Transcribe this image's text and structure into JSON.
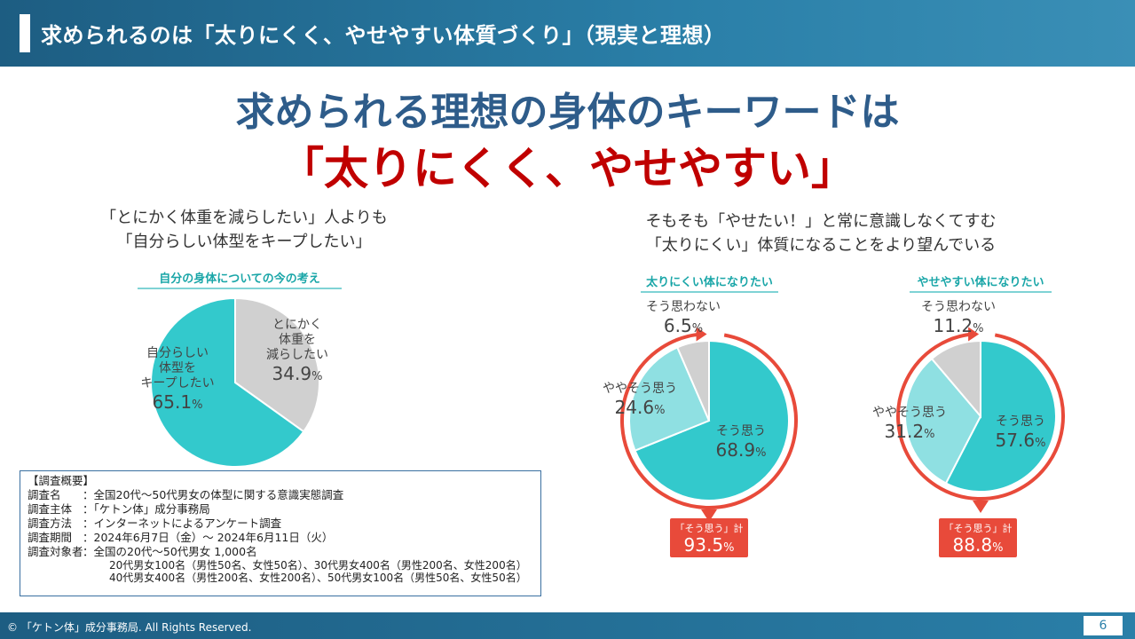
{
  "header": {
    "title": "求められるのは「太りにくく、やせやすい体質づくり」（現実と理想）"
  },
  "headline": {
    "line1": "求められる理想の身体のキーワードは",
    "line2": "「太りにくく、やせやすい」"
  },
  "left": {
    "subtitle1": "「とにかく体重を減らしたい」人よりも",
    "subtitle2": "「自分らしい体型をキープしたい」"
  },
  "right": {
    "subtitle1": "そもそも「やせたい！」と常に意識しなくてすむ",
    "subtitle2": "「太りにくい」体質になることをより望んでいる"
  },
  "colors": {
    "teal": "#33c9cc",
    "light_teal": "#8fe0e2",
    "gray": "#d0d0d0",
    "red": "#e84a3a",
    "navy": "#2e5c8a",
    "crimson": "#c00000"
  },
  "chart_data": [
    {
      "type": "pie",
      "title": "自分の身体についての今の考え",
      "labels": [
        "とにかく体重を減らしたい",
        "自分らしい体型をキープしたい"
      ],
      "label_lines": [
        [
          "とにかく",
          "体重を",
          "減らしたい"
        ],
        [
          "自分らしい",
          "体型を",
          "キープしたい"
        ]
      ],
      "values": [
        34.9,
        65.1
      ],
      "value_text": [
        "34.9",
        "65.1"
      ],
      "unit": "%",
      "colors": [
        "#d0d0d0",
        "#33c9cc"
      ]
    },
    {
      "type": "pie",
      "title": "太りにくい体になりたい",
      "labels": [
        "そう思う",
        "ややそう思う",
        "そう思わない"
      ],
      "values": [
        68.9,
        24.6,
        6.5
      ],
      "value_text": [
        "68.9",
        "24.6",
        "6.5"
      ],
      "unit": "%",
      "colors": [
        "#33c9cc",
        "#8fe0e2",
        "#d0d0d0"
      ],
      "total_label": "「そう思う」計",
      "total_value": "93.5"
    },
    {
      "type": "pie",
      "title": "やせやすい体になりたい",
      "labels": [
        "そう思う",
        "ややそう思う",
        "そう思わない"
      ],
      "values": [
        57.6,
        31.2,
        11.2
      ],
      "value_text": [
        "57.6",
        "31.2",
        "11.2"
      ],
      "unit": "%",
      "colors": [
        "#33c9cc",
        "#8fe0e2",
        "#d0d0d0"
      ],
      "total_label": "「そう思う」計",
      "total_value": "88.8"
    }
  ],
  "survey": {
    "heading": "【調査概要】",
    "rows": [
      {
        "key": "調査名",
        "val": "：全国20代～50代男女の体型に関する意識実態調査"
      },
      {
        "key": "調査主体",
        "val": "：「ケトン体」成分事務局"
      },
      {
        "key": "調査方法",
        "val": "：インターネットによるアンケート調査"
      },
      {
        "key": "調査期間",
        "val": "：2024年6月7日（金）～ 2024年6月11日（火）"
      },
      {
        "key": "調査対象者",
        "val": "：全国の20代～50代男女 1,000名"
      }
    ],
    "detail1": "20代男女100名（男性50名、女性50名）、30代男女400名（男性200名、女性200名）",
    "detail2": "40代男女400名（男性200名、女性200名）、50代男女100名（男性50名、女性50名）"
  },
  "footer": {
    "copyright": "© 「ケトン体」成分事務局. All Rights Reserved.",
    "page": "6"
  }
}
